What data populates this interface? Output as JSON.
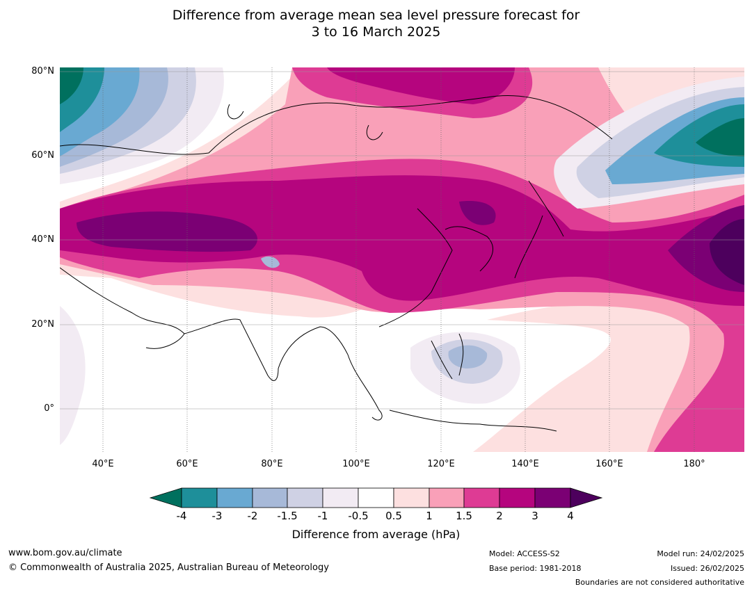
{
  "title": {
    "line1": "Difference from average mean sea level pressure forecast for",
    "line2": "3 to 16 March 2025"
  },
  "axes": {
    "lat_labels": [
      "80°N",
      "60°N",
      "40°N",
      "20°N",
      "0°"
    ],
    "lon_labels": [
      "40°E",
      "60°E",
      "80°E",
      "100°E",
      "120°E",
      "140°E",
      "160°E",
      "180°"
    ]
  },
  "legend": {
    "title": "Difference from average (hPa)",
    "levels": [
      "-4",
      "-3",
      "-2",
      "-1.5",
      "-1",
      "-0.5",
      "0.5",
      "1",
      "1.5",
      "2",
      "3",
      "4"
    ],
    "colors": [
      "#00705e",
      "#1e8f9a",
      "#69a9d2",
      "#a7b9d8",
      "#cfd1e4",
      "#f2ebf3",
      "#ffffff",
      "#fde0e0",
      "#f9a0b8",
      "#de3b94",
      "#b5057e",
      "#7b0074",
      "#4d005d"
    ]
  },
  "footer": {
    "url": "www.bom.gov.au/climate",
    "copyright": "© Commonwealth of Australia 2025, Australian Bureau of Meteorology",
    "model": "Model: ACCESS-S2",
    "base_period": "Base period: 1981-2018",
    "model_run": "Model run: 24/02/2025",
    "issued": "Issued: 26/02/2025",
    "disclaimer": "Boundaries are not considered authoritative"
  }
}
